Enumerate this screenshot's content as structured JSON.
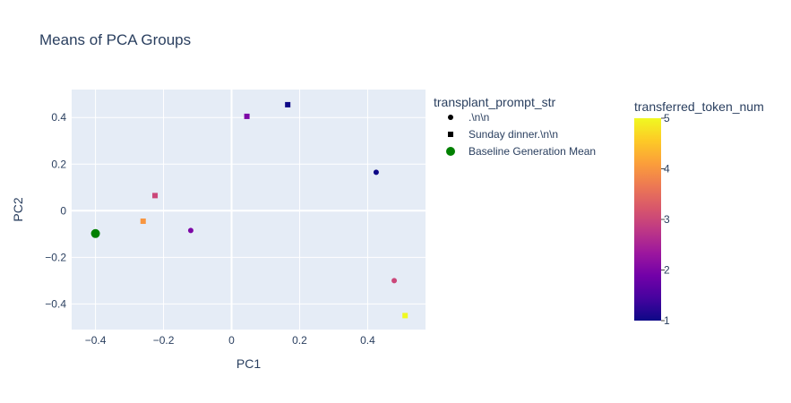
{
  "chart_data": {
    "type": "scatter",
    "title": "Means of PCA Groups",
    "xlabel": "PC1",
    "ylabel": "PC2",
    "xlim": [
      -0.47,
      0.57
    ],
    "ylim": [
      -0.51,
      0.52
    ],
    "x_ticks": [
      -0.4,
      -0.2,
      0,
      0.2,
      0.4
    ],
    "x_tick_labels": [
      "−0.4",
      "−0.2",
      "0",
      "0.2",
      "0.4"
    ],
    "y_ticks": [
      -0.4,
      -0.2,
      0,
      0.2,
      0.4
    ],
    "y_tick_labels": [
      "−0.4",
      "−0.2",
      "0",
      "0.2",
      "0.4"
    ],
    "grid": true,
    "legend_title": "transplant_prompt_str",
    "legend": [
      {
        "label": ".\\n\\n",
        "symbol": "circle",
        "color": "#000000"
      },
      {
        "label": "Sunday dinner.\\n\\n",
        "symbol": "square",
        "color": "#000000"
      },
      {
        "label": "Baseline Generation Mean",
        "symbol": "circle",
        "color": "#008000"
      }
    ],
    "colorbar": {
      "title": "transferred_token_num",
      "min": 1,
      "max": 5,
      "ticks": [
        1,
        2,
        3,
        4,
        5
      ],
      "tick_labels": [
        "1",
        "2",
        "3",
        "4",
        "5"
      ]
    },
    "series": [
      {
        "name": ".\\n\\n",
        "symbol": "circle",
        "points": [
          {
            "x": 0.425,
            "y": 0.165,
            "token_num": 1
          },
          {
            "x": -0.12,
            "y": -0.085,
            "token_num": 2
          },
          {
            "x": 0.478,
            "y": -0.3,
            "token_num": 3
          }
        ]
      },
      {
        "name": "Sunday dinner.\\n\\n",
        "symbol": "square",
        "points": [
          {
            "x": 0.165,
            "y": 0.455,
            "token_num": 1
          },
          {
            "x": 0.045,
            "y": 0.405,
            "token_num": 2
          },
          {
            "x": -0.225,
            "y": 0.065,
            "token_num": 3
          },
          {
            "x": -0.26,
            "y": -0.045,
            "token_num": 4
          },
          {
            "x": 0.51,
            "y": -0.45,
            "token_num": 5
          }
        ]
      },
      {
        "name": "Baseline Generation Mean",
        "symbol": "circle",
        "color": "#008000",
        "points": [
          {
            "x": -0.4,
            "y": -0.098
          }
        ]
      }
    ]
  }
}
